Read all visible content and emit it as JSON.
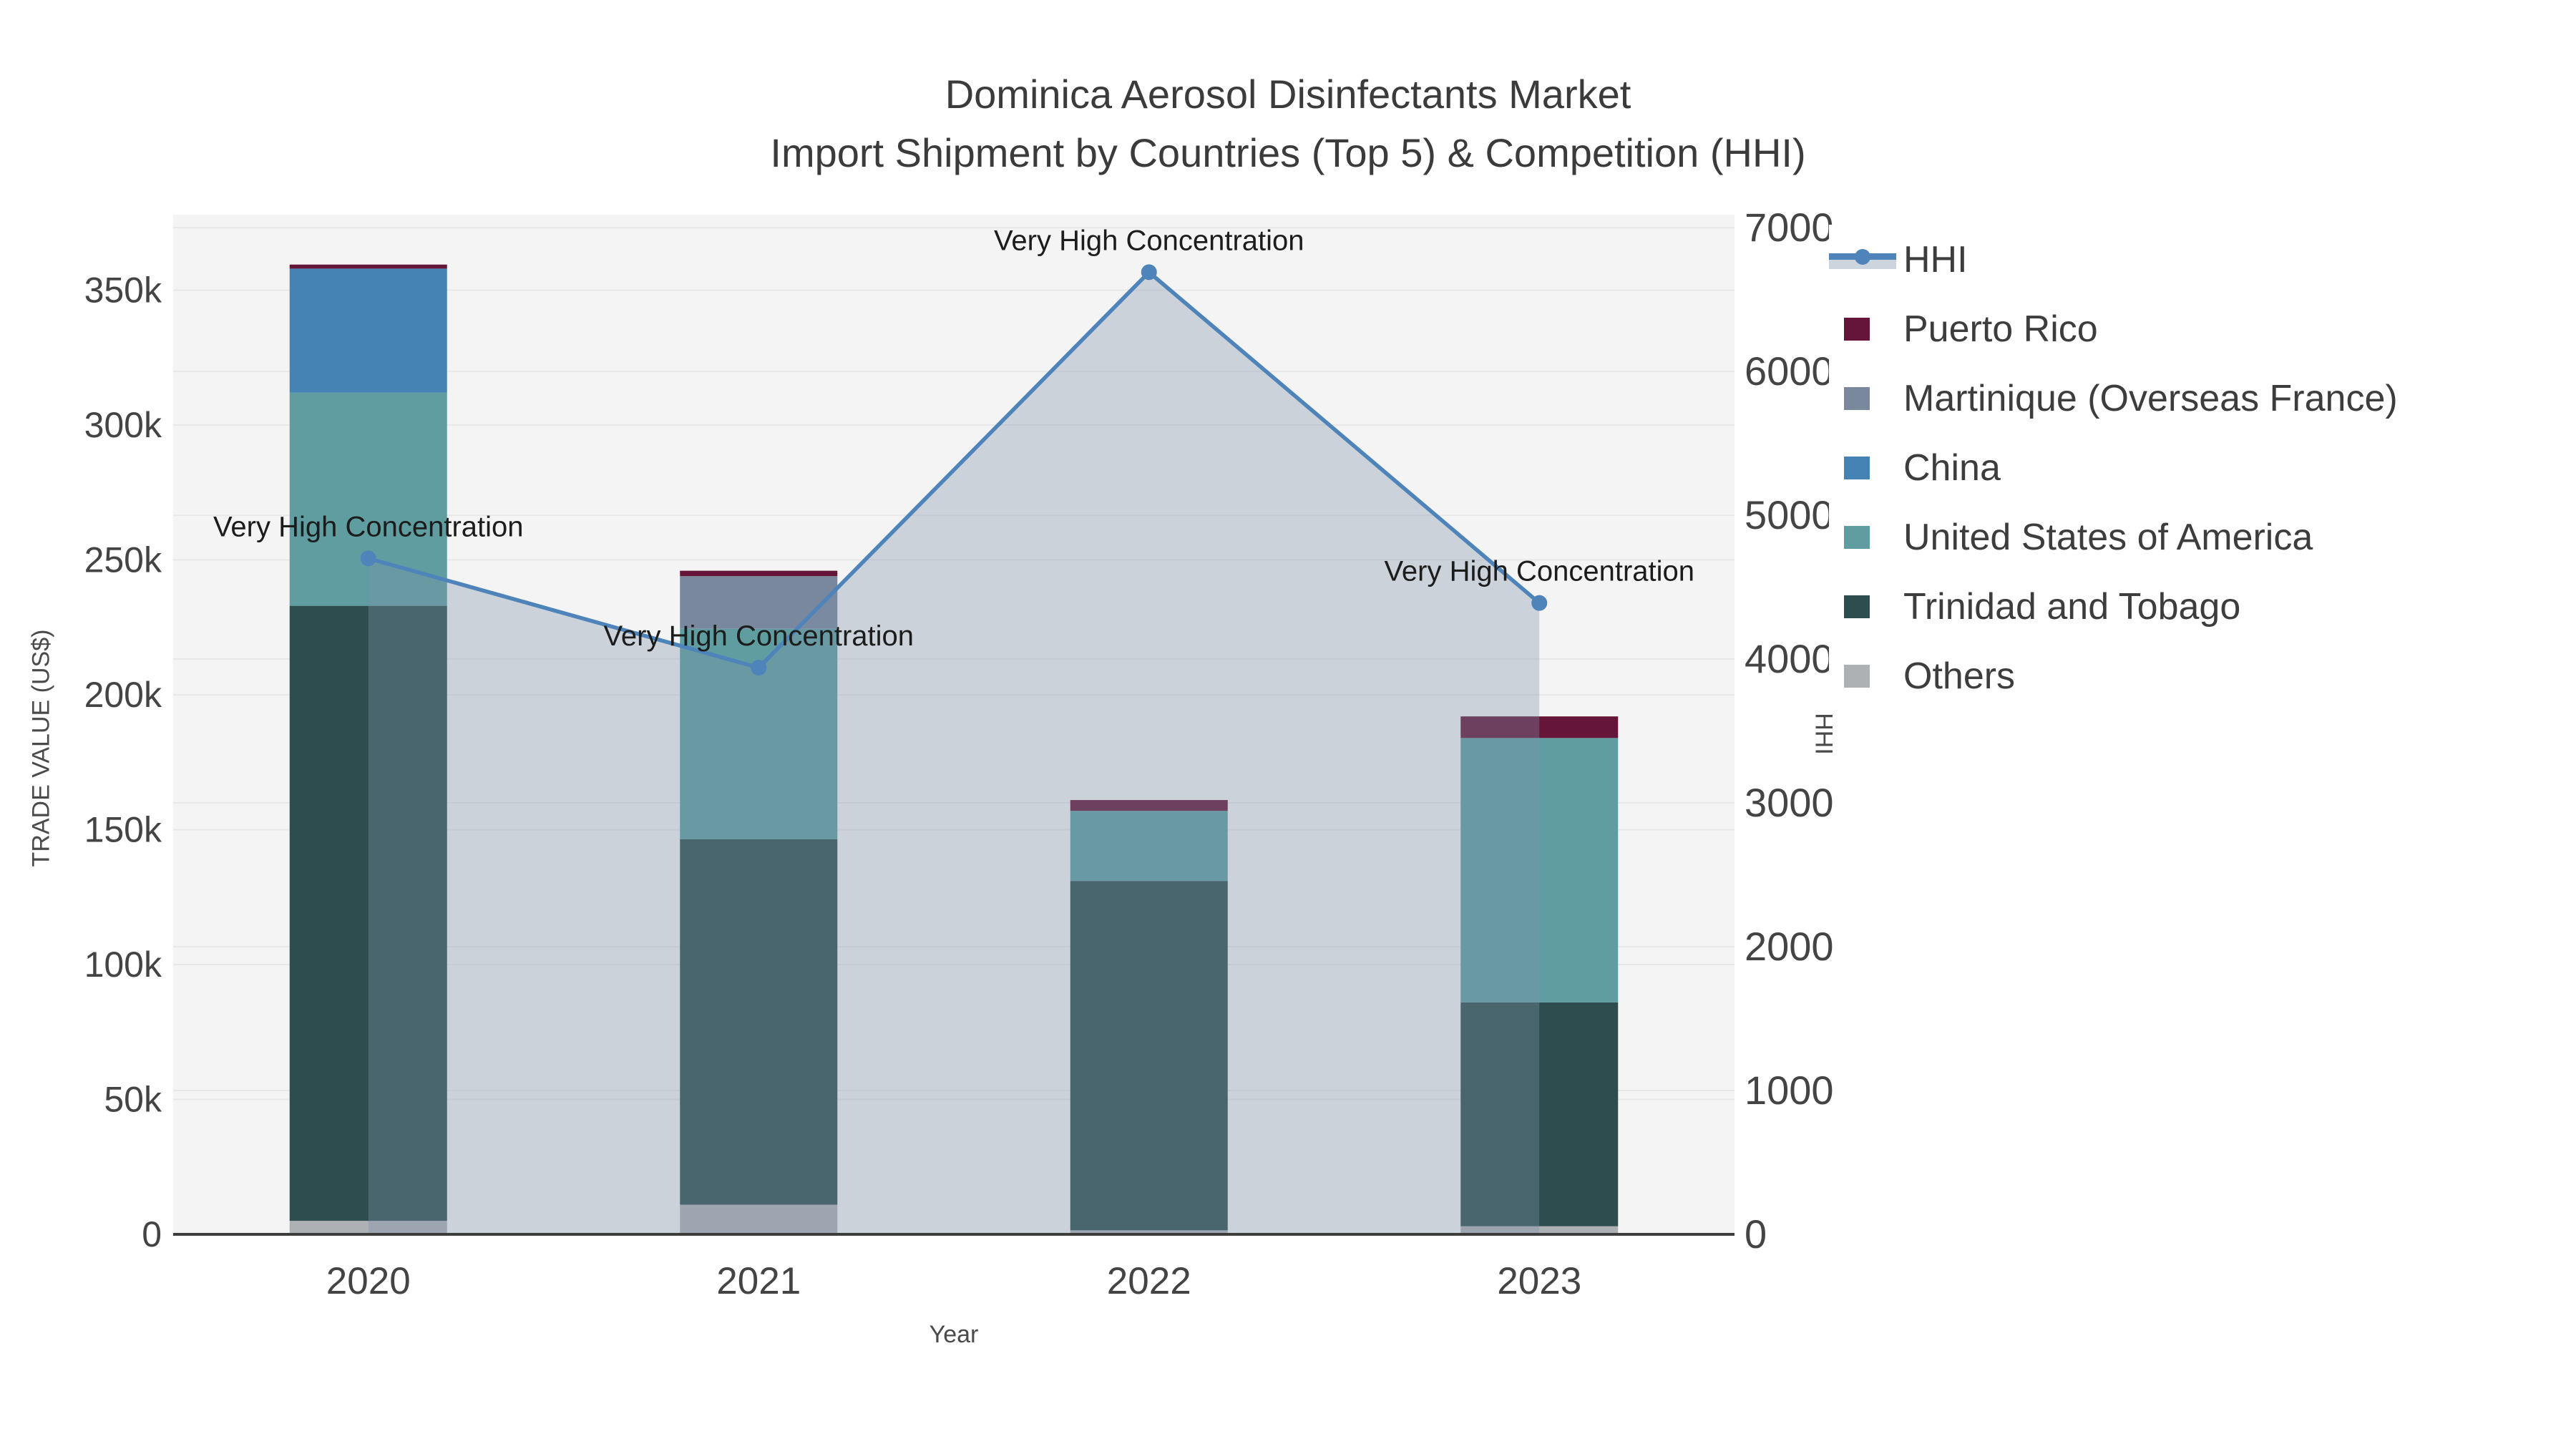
{
  "chart": {
    "title": "Dominica Aerosol Disinfectants Market",
    "subtitle": "Import Shipment by Countries (Top 5) & Competition (HHI)",
    "x_title": "Year",
    "y1_title": "TRADE VALUE (US$)",
    "y2_title": "HHI"
  },
  "chart_data": {
    "type": "combo-stacked-bar-line",
    "categories": [
      "2020",
      "2021",
      "2022",
      "2023"
    ],
    "series": [
      {
        "name": "Others",
        "color": "#aeb1b4",
        "values": [
          5000,
          11000,
          1500,
          3000
        ]
      },
      {
        "name": "Trinidad and Tobago",
        "color": "#2d4d4e",
        "values": [
          228000,
          135500,
          129500,
          83000
        ]
      },
      {
        "name": "United States of America",
        "color": "#5f9da0",
        "values": [
          79000,
          78000,
          26000,
          98000
        ]
      },
      {
        "name": "China",
        "color": "#4583b4",
        "values": [
          46000,
          0,
          0,
          0
        ]
      },
      {
        "name": "Martinique (Overseas France)",
        "color": "#79889d",
        "values": [
          0,
          19500,
          0,
          0
        ]
      },
      {
        "name": "Puerto Rico",
        "color": "#651538",
        "values": [
          1500,
          2000,
          4000,
          8000
        ]
      }
    ],
    "line": {
      "name": "HHI",
      "color": "#4f84ba",
      "fill": "rgba(127,145,168,0.35)",
      "values": [
        4700,
        3940,
        6690,
        4390
      ]
    },
    "annotations": [
      {
        "category": "2020",
        "text": "Very High Concentration"
      },
      {
        "category": "2021",
        "text": "Very High Concentration"
      },
      {
        "category": "2022",
        "text": "Very High Concentration"
      },
      {
        "category": "2023",
        "text": "Very High Concentration"
      }
    ],
    "y1_axis": {
      "ticks": [
        "0",
        "50k",
        "100k",
        "150k",
        "200k",
        "250k",
        "300k",
        "350k"
      ],
      "tick_values": [
        0,
        50000,
        100000,
        150000,
        200000,
        250000,
        300000,
        350000
      ],
      "range": [
        0,
        378000
      ],
      "grid": true
    },
    "y2_axis": {
      "ticks": [
        "0",
        "1000",
        "2000",
        "3000",
        "4000",
        "5000",
        "6000",
        "7000"
      ],
      "tick_values": [
        0,
        1000,
        2000,
        3000,
        4000,
        5000,
        6000,
        7000
      ],
      "range": [
        0,
        7090
      ],
      "grid": true
    },
    "legend_position": "right",
    "plot_bg": "#f4f4f4",
    "grid_color": "#e8e8e8",
    "axis_line_color": "#3d3d3d",
    "tick_color": "#444444",
    "annotation_color": "#1c1c1c"
  },
  "legend": {
    "items": [
      {
        "label": "HHI",
        "type": "line",
        "color": "#4f84ba"
      },
      {
        "label": "Puerto Rico",
        "type": "swatch",
        "color": "#651538"
      },
      {
        "label": "Martinique (Overseas France)",
        "type": "swatch",
        "color": "#79889d"
      },
      {
        "label": "China",
        "type": "swatch",
        "color": "#4583b4"
      },
      {
        "label": "United States of America",
        "type": "swatch",
        "color": "#5f9da0"
      },
      {
        "label": "Trinidad and Tobago",
        "type": "swatch",
        "color": "#2d4d4e"
      },
      {
        "label": "Others",
        "type": "swatch",
        "color": "#aeb1b4"
      }
    ]
  }
}
